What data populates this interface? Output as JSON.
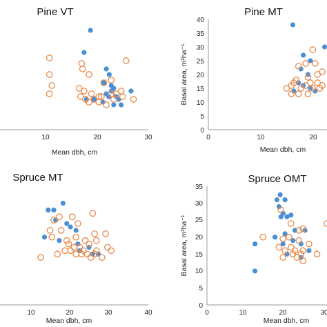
{
  "colors": {
    "blue": "#4a8fd4",
    "orange": "#e8894a"
  },
  "chart_data": [
    {
      "type": "scatter",
      "title": "Pine VT",
      "xlabel": "Mean dbh, cm",
      "ylabel": "",
      "xticks": [
        "10",
        "20",
        "30"
      ],
      "yticks": [],
      "xlim": [
        0,
        30
      ],
      "ylim": [
        0,
        40
      ],
      "series": [
        {
          "marker": "filled",
          "color": "#4a8fd4",
          "points": [
            [
              18.3,
              36
            ],
            [
              17.0,
              28
            ],
            [
              21.5,
              22
            ],
            [
              22.1,
              20
            ],
            [
              21.0,
              17
            ],
            [
              22.5,
              16
            ],
            [
              23.0,
              15
            ],
            [
              22.5,
              14
            ],
            [
              21.5,
              13
            ],
            [
              23.5,
              12
            ],
            [
              22.0,
              12
            ],
            [
              24.0,
              11
            ],
            [
              20.8,
              10
            ],
            [
              23.0,
              9
            ],
            [
              24.5,
              9
            ],
            [
              19.0,
              11
            ],
            [
              17.5,
              11
            ],
            [
              26.5,
              14
            ]
          ]
        },
        {
          "marker": "open",
          "color": "#e8894a",
          "points": [
            [
              10.0,
              26
            ],
            [
              16.5,
              24
            ],
            [
              25.5,
              25
            ],
            [
              16.7,
              22
            ],
            [
              10.0,
              20
            ],
            [
              18.0,
              20
            ],
            [
              22.5,
              18
            ],
            [
              21.0,
              17
            ],
            [
              10.5,
              16
            ],
            [
              16.0,
              15
            ],
            [
              17.0,
              14
            ],
            [
              18.5,
              13
            ],
            [
              20.0,
              12
            ],
            [
              23.5,
              13
            ],
            [
              24.5,
              14
            ],
            [
              22.5,
              13
            ],
            [
              16.3,
              12
            ],
            [
              17.3,
              11
            ],
            [
              18.0,
              10
            ],
            [
              20.5,
              12
            ],
            [
              19.0,
              11
            ],
            [
              23.0,
              11
            ],
            [
              24.8,
              12
            ],
            [
              27.0,
              11
            ],
            [
              20.0,
              10
            ],
            [
              21.5,
              9
            ],
            [
              10.0,
              13
            ]
          ]
        }
      ]
    },
    {
      "type": "scatter",
      "title": "Pine MT",
      "xlabel": "Mean dbh, cm",
      "ylabel": "Basal area, m²ha⁻¹",
      "xticks": [
        "0",
        "10",
        "20"
      ],
      "yticks": [
        "0",
        "5",
        "10",
        "15",
        "20",
        "25",
        "30",
        "35",
        "40"
      ],
      "xlim": [
        0,
        25
      ],
      "ylim": [
        0,
        40
      ],
      "series": [
        {
          "marker": "filled",
          "color": "#4a8fd4",
          "points": [
            [
              17.8,
              38
            ],
            [
              20.0,
              27
            ],
            [
              21.5,
              25
            ],
            [
              19.5,
              22
            ],
            [
              19.0,
              17
            ],
            [
              20.0,
              16
            ],
            [
              21.5,
              15
            ],
            [
              22.5,
              14
            ],
            [
              18.0,
              14
            ],
            [
              24.5,
              30
            ],
            [
              21.0,
              20
            ]
          ]
        },
        {
          "marker": "open",
          "color": "#e8894a",
          "points": [
            [
              22.0,
              29
            ],
            [
              22.5,
              24
            ],
            [
              20.5,
              24
            ],
            [
              19.0,
              23
            ],
            [
              24.0,
              21
            ],
            [
              23.0,
              20
            ],
            [
              21.0,
              19
            ],
            [
              18.5,
              18
            ],
            [
              18.0,
              17
            ],
            [
              20.5,
              16
            ],
            [
              22.0,
              15
            ],
            [
              19.5,
              15
            ],
            [
              21.5,
              17
            ],
            [
              17.5,
              16
            ],
            [
              16.5,
              15
            ],
            [
              17.5,
              13
            ],
            [
              19.0,
              13
            ],
            [
              21.0,
              13
            ],
            [
              23.5,
              15
            ],
            [
              23.0,
              17
            ],
            [
              24.0,
              16
            ]
          ]
        }
      ]
    },
    {
      "type": "scatter",
      "title": "Spruce MT",
      "xlabel": "Mean dbh, cm",
      "ylabel": "",
      "xticks": [
        "10",
        "20",
        "30",
        "40"
      ],
      "yticks": [],
      "xlim": [
        0,
        40
      ],
      "ylim": [
        0,
        35
      ],
      "series": [
        {
          "marker": "filled",
          "color": "#4a8fd4",
          "points": [
            [
              17.0,
              30
            ],
            [
              13.0,
              28
            ],
            [
              14.5,
              28
            ],
            [
              15.0,
              25
            ],
            [
              18.0,
              24
            ],
            [
              19.0,
              23
            ],
            [
              20.5,
              22
            ],
            [
              12.0,
              20
            ],
            [
              16.0,
              19
            ],
            [
              21.5,
              16
            ],
            [
              24.0,
              17
            ],
            [
              25.0,
              15
            ],
            [
              26.5,
              15
            ],
            [
              21.0,
              18
            ]
          ]
        },
        {
          "marker": "open",
          "color": "#e8894a",
          "points": [
            [
              19.5,
              26
            ],
            [
              25.0,
              27
            ],
            [
              16.0,
              26
            ],
            [
              14.5,
              25
            ],
            [
              21.0,
              24
            ],
            [
              16.5,
              22
            ],
            [
              13.5,
              22
            ],
            [
              20.5,
              20
            ],
            [
              25.5,
              21
            ],
            [
              28.5,
              21
            ],
            [
              18.0,
              19
            ],
            [
              23.0,
              19
            ],
            [
              26.0,
              19
            ],
            [
              14.0,
              20
            ],
            [
              18.5,
              18
            ],
            [
              20.0,
              17
            ],
            [
              21.5,
              17
            ],
            [
              24.0,
              18
            ],
            [
              29.0,
              17
            ],
            [
              17.5,
              16
            ],
            [
              19.0,
              16
            ],
            [
              22.0,
              15
            ],
            [
              24.5,
              14
            ],
            [
              25.5,
              15
            ],
            [
              27.5,
              14
            ],
            [
              30.0,
              16
            ],
            [
              15.5,
              15
            ],
            [
              11.0,
              14
            ],
            [
              20.5,
              15
            ],
            [
              22.5,
              16
            ],
            [
              23.5,
              15
            ],
            [
              26.0,
              16
            ]
          ]
        }
      ]
    },
    {
      "type": "scatter",
      "title": "Spruce OMT",
      "xlabel": "Mean dbh, cm",
      "ylabel": "Basal area, m²ha⁻¹",
      "xticks": [
        "0",
        "10",
        "20",
        "30"
      ],
      "yticks": [
        "0",
        "5",
        "10",
        "15",
        "20",
        "25",
        "30",
        "35"
      ],
      "xlim": [
        0,
        30
      ],
      "ylim": [
        0,
        35
      ],
      "series": [
        {
          "marker": "filled",
          "color": "#4a8fd4",
          "points": [
            [
              18.3,
              32.5
            ],
            [
              17.5,
              31
            ],
            [
              19.5,
              31
            ],
            [
              18.0,
              29
            ],
            [
              19.0,
              27
            ],
            [
              21.0,
              26.5
            ],
            [
              18.5,
              26
            ],
            [
              20.0,
              26
            ],
            [
              22.0,
              22
            ],
            [
              24.5,
              22
            ],
            [
              19.5,
              21
            ],
            [
              17.0,
              20
            ],
            [
              21.5,
              19
            ],
            [
              19.0,
              18
            ],
            [
              20.0,
              15
            ],
            [
              23.5,
              14
            ],
            [
              12.0,
              18
            ],
            [
              12.0,
              10
            ],
            [
              23.5,
              18
            ],
            [
              25.5,
              16
            ]
          ]
        },
        {
          "marker": "open",
          "color": "#e8894a",
          "points": [
            [
              18.5,
              28
            ],
            [
              21.0,
              24
            ],
            [
              30.0,
              24
            ],
            [
              24.0,
              22.5
            ],
            [
              23.0,
              22
            ],
            [
              14.0,
              20
            ],
            [
              20.5,
              20
            ],
            [
              19.0,
              19.5
            ],
            [
              23.0,
              19
            ],
            [
              25.5,
              18
            ],
            [
              18.0,
              17
            ],
            [
              19.5,
              16
            ],
            [
              22.0,
              16
            ],
            [
              24.0,
              16
            ],
            [
              21.0,
              17
            ],
            [
              23.5,
              15
            ],
            [
              27.5,
              15
            ],
            [
              21.5,
              15
            ],
            [
              19.0,
              14
            ],
            [
              22.5,
              14
            ],
            [
              24.0,
              13
            ]
          ]
        }
      ]
    }
  ]
}
